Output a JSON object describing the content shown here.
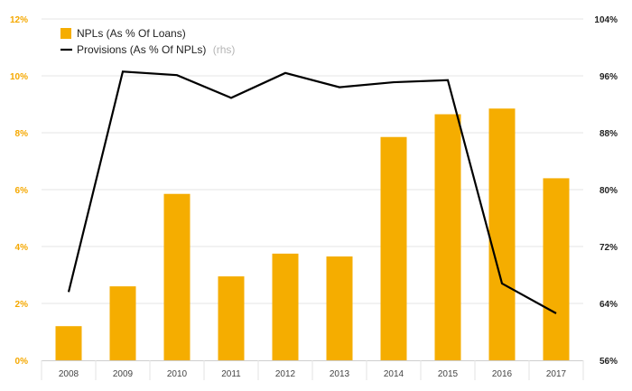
{
  "chart_data": {
    "type": "bar",
    "categories": [
      "2008",
      "2009",
      "2010",
      "2011",
      "2012",
      "2013",
      "2014",
      "2015",
      "2016",
      "2017"
    ],
    "series": [
      {
        "name": "NPLs (As % Of Loans)",
        "kind": "bar",
        "axis": "left",
        "color": "#f5ad00",
        "values": [
          1.2,
          2.6,
          5.85,
          2.95,
          3.75,
          3.65,
          7.85,
          8.65,
          8.85,
          6.4
        ]
      },
      {
        "name": "Provisions (As % Of NPLs)",
        "kind": "line",
        "axis": "right",
        "color": "#000000",
        "values": [
          65.6,
          96.6,
          96.1,
          92.9,
          96.4,
          94.4,
          95.1,
          95.4,
          66.8,
          62.6
        ]
      }
    ],
    "y_left": {
      "lim": [
        0,
        12
      ],
      "ticks": [
        "0%",
        "2%",
        "4%",
        "6%",
        "8%",
        "10%",
        "12%"
      ],
      "tick_color": "#f5a800"
    },
    "y_right": {
      "lim": [
        56,
        104
      ],
      "ticks": [
        "56%",
        "64%",
        "72%",
        "80%",
        "88%",
        "96%",
        "104%"
      ],
      "tick_color": "#222222"
    },
    "legend": {
      "placement": "top-left",
      "items": [
        {
          "label": "NPLs (As % Of Loans)",
          "note": ""
        },
        {
          "label": "Provisions (As % Of NPLs)",
          "note": "(rhs)"
        }
      ]
    },
    "grid": true,
    "grid_color": "#e6e6e6",
    "title": "",
    "xlabel": "",
    "ylabel": ""
  }
}
